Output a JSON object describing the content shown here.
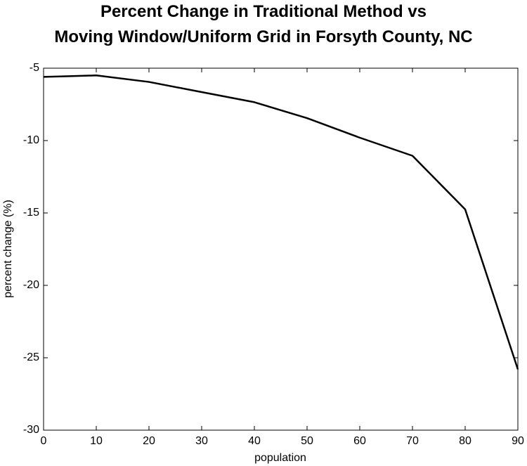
{
  "chart_data": {
    "type": "line",
    "title": "Percent Change in Traditional Method vs\nMoving Window/Uniform Grid in Forsyth County, NC",
    "x_label": "population",
    "y_label": "percent change (%)",
    "x": [
      0,
      5,
      10,
      20,
      30,
      40,
      50,
      60,
      70,
      80,
      90
    ],
    "series": [
      {
        "name": "percent change",
        "color": "#000000",
        "values": [
          -5.6,
          -5.55,
          -5.5,
          -5.95,
          -6.65,
          -7.35,
          -8.45,
          -9.8,
          -11.05,
          -14.75,
          -25.8
        ]
      }
    ],
    "xlim": [
      0,
      90
    ],
    "xticks": [
      0,
      10,
      20,
      30,
      40,
      50,
      60,
      70,
      80,
      90
    ],
    "ylim": [
      -30,
      -5
    ],
    "yticks": [
      -30,
      -25,
      -20,
      -15,
      -10,
      -5
    ],
    "grid": false
  }
}
